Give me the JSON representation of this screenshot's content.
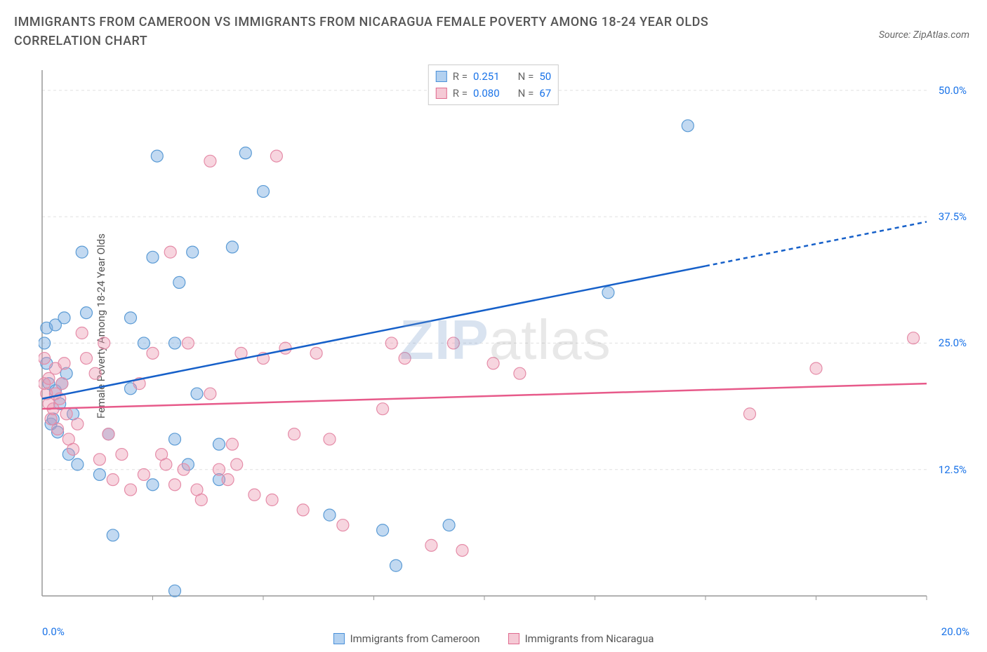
{
  "title": "IMMIGRANTS FROM CAMEROON VS IMMIGRANTS FROM NICARAGUA FEMALE POVERTY AMONG 18-24 YEAR OLDS CORRELATION CHART",
  "source": "Source: ZipAtlas.com",
  "watermark_bold": "ZIP",
  "watermark_light": "atlas",
  "chart": {
    "type": "scatter-with-trend",
    "y_label": "Female Poverty Among 18-24 Year Olds",
    "x_min_label": "0.0%",
    "x_max_label": "20.0%",
    "x_min": 0.0,
    "x_max": 20.0,
    "y_min": 0.0,
    "y_max": 52.0,
    "y_ticks": [
      12.5,
      25.0,
      37.5,
      50.0
    ],
    "y_tick_labels": [
      "12.5%",
      "25.0%",
      "37.5%",
      "50.0%"
    ],
    "x_ticks_minor": [
      2.5,
      5.0,
      7.5,
      10.0,
      12.5,
      15.0,
      17.5,
      20.0
    ],
    "grid_color": "#e0e0e0",
    "axis_color": "#999999",
    "background_color": "#ffffff",
    "marker_radius": 8.5
  },
  "series": [
    {
      "name": "Immigrants from Cameroon",
      "swatch_fill": "#b3d1f0",
      "swatch_stroke": "#4a90d9",
      "point_fill": "rgba(120,170,225,0.45)",
      "point_stroke": "#5b9bd5",
      "line_color": "#1660c9",
      "R": "0.251",
      "N": "50",
      "trend": {
        "x1": 0.0,
        "y1": 19.5,
        "x2": 20.0,
        "y2": 37.0,
        "dash_from_x": 15.0
      },
      "points": [
        [
          0.05,
          25.0
        ],
        [
          0.1,
          23.0
        ],
        [
          0.1,
          26.5
        ],
        [
          0.15,
          21.0
        ],
        [
          0.2,
          17.0
        ],
        [
          0.25,
          17.5
        ],
        [
          0.3,
          20.3
        ],
        [
          0.3,
          26.8
        ],
        [
          0.35,
          16.2
        ],
        [
          0.4,
          19.0
        ],
        [
          0.45,
          21.0
        ],
        [
          0.5,
          27.5
        ],
        [
          0.55,
          22.0
        ],
        [
          0.6,
          14.0
        ],
        [
          0.7,
          18.0
        ],
        [
          0.8,
          13.0
        ],
        [
          0.9,
          34.0
        ],
        [
          1.0,
          28.0
        ],
        [
          1.3,
          12.0
        ],
        [
          1.5,
          16.0
        ],
        [
          1.6,
          6.0
        ],
        [
          2.0,
          20.5
        ],
        [
          2.0,
          27.5
        ],
        [
          2.3,
          25.0
        ],
        [
          2.5,
          11.0
        ],
        [
          2.5,
          33.5
        ],
        [
          2.6,
          43.5
        ],
        [
          3.0,
          0.5
        ],
        [
          3.0,
          15.5
        ],
        [
          3.0,
          25.0
        ],
        [
          3.1,
          31.0
        ],
        [
          3.3,
          13.0
        ],
        [
          3.4,
          34.0
        ],
        [
          3.5,
          20.0
        ],
        [
          4.0,
          11.5
        ],
        [
          4.0,
          15.0
        ],
        [
          4.3,
          34.5
        ],
        [
          4.6,
          43.8
        ],
        [
          5.0,
          40.0
        ],
        [
          6.5,
          8.0
        ],
        [
          7.7,
          6.5
        ],
        [
          8.0,
          3.0
        ],
        [
          9.2,
          7.0
        ],
        [
          12.8,
          30.0
        ],
        [
          14.6,
          46.5
        ]
      ]
    },
    {
      "name": "Immigrants from Nicaragua",
      "swatch_fill": "#f5c9d5",
      "swatch_stroke": "#e06b8f",
      "point_fill": "rgba(235,150,175,0.40)",
      "point_stroke": "#e58ca8",
      "line_color": "#e75a8a",
      "R": "0.080",
      "N": "67",
      "trend": {
        "x1": 0.0,
        "y1": 18.5,
        "x2": 20.0,
        "y2": 21.0,
        "dash_from_x": 20.0
      },
      "points": [
        [
          0.05,
          21.0
        ],
        [
          0.05,
          23.5
        ],
        [
          0.1,
          20.0
        ],
        [
          0.15,
          19.0
        ],
        [
          0.15,
          21.5
        ],
        [
          0.2,
          17.5
        ],
        [
          0.25,
          18.5
        ],
        [
          0.3,
          22.5
        ],
        [
          0.3,
          20.0
        ],
        [
          0.35,
          16.5
        ],
        [
          0.4,
          19.5
        ],
        [
          0.45,
          21.0
        ],
        [
          0.5,
          23.0
        ],
        [
          0.55,
          18.0
        ],
        [
          0.6,
          15.5
        ],
        [
          0.7,
          14.5
        ],
        [
          0.8,
          17.0
        ],
        [
          0.9,
          26.0
        ],
        [
          1.0,
          23.5
        ],
        [
          1.2,
          22.0
        ],
        [
          1.3,
          13.5
        ],
        [
          1.4,
          25.0
        ],
        [
          1.5,
          16.0
        ],
        [
          1.6,
          11.5
        ],
        [
          1.8,
          14.0
        ],
        [
          2.0,
          10.5
        ],
        [
          2.2,
          21.0
        ],
        [
          2.3,
          12.0
        ],
        [
          2.5,
          24.0
        ],
        [
          2.7,
          14.0
        ],
        [
          2.8,
          13.0
        ],
        [
          2.9,
          34.0
        ],
        [
          3.0,
          11.0
        ],
        [
          3.2,
          12.5
        ],
        [
          3.3,
          25.0
        ],
        [
          3.5,
          10.5
        ],
        [
          3.6,
          9.5
        ],
        [
          3.8,
          20.0
        ],
        [
          3.8,
          43.0
        ],
        [
          4.0,
          12.5
        ],
        [
          4.2,
          11.5
        ],
        [
          4.3,
          15.0
        ],
        [
          4.4,
          13.0
        ],
        [
          4.5,
          24.0
        ],
        [
          4.8,
          10.0
        ],
        [
          5.0,
          23.5
        ],
        [
          5.2,
          9.5
        ],
        [
          5.3,
          43.5
        ],
        [
          5.5,
          24.5
        ],
        [
          5.7,
          16.0
        ],
        [
          5.9,
          8.5
        ],
        [
          6.2,
          24.0
        ],
        [
          6.5,
          15.5
        ],
        [
          6.8,
          7.0
        ],
        [
          7.7,
          18.5
        ],
        [
          7.9,
          25.0
        ],
        [
          8.2,
          23.5
        ],
        [
          8.8,
          5.0
        ],
        [
          9.3,
          25.0
        ],
        [
          9.5,
          4.5
        ],
        [
          10.2,
          23.0
        ],
        [
          10.8,
          22.0
        ],
        [
          16.0,
          18.0
        ],
        [
          17.5,
          22.5
        ],
        [
          19.7,
          25.5
        ]
      ]
    }
  ],
  "stats_header": {
    "R_label": "R =",
    "N_label": "N ="
  },
  "bottom_legend": [
    {
      "swatch_fill": "#b3d1f0",
      "swatch_stroke": "#4a90d9",
      "label": "Immigrants from Cameroon"
    },
    {
      "swatch_fill": "#f5c9d5",
      "swatch_stroke": "#e06b8f",
      "label": "Immigrants from Nicaragua"
    }
  ]
}
